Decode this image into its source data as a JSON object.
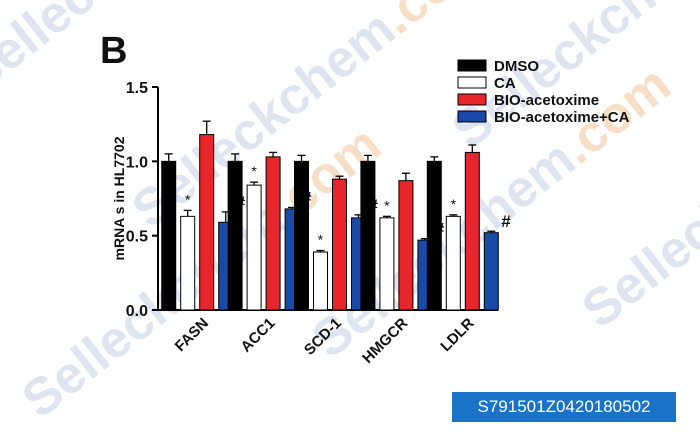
{
  "figure": {
    "panel_label": "B",
    "watermark_text": "Selleckchem",
    "watermark_suffix": ".com",
    "image_id": "S791501Z0420180502"
  },
  "colors": {
    "DMSO": "#000000",
    "CA": "#ffffff",
    "BIO-acetoxime": "#e8252a",
    "BIO-acetoxime+CA": "#1a4aa8",
    "watermark": "#c5cfe6",
    "watermark_orange": "#f2c49a",
    "badge": "#1a73c8"
  },
  "chart_data": {
    "type": "bar",
    "title": "",
    "xlabel": "",
    "ylabel": "mRNA s in HL7702",
    "ylim": [
      0,
      1.5
    ],
    "yticks": [
      "0.0",
      "0.5",
      "1.0",
      "1.5"
    ],
    "categories": [
      "FASN",
      "ACC1",
      "SCD-1",
      "HMGCR",
      "LDLR"
    ],
    "legend_position": "top-right",
    "grid": false,
    "series": [
      {
        "name": "DMSO",
        "values": [
          1.0,
          1.0,
          1.0,
          1.0,
          1.0
        ],
        "errors": [
          0.05,
          0.05,
          0.04,
          0.04,
          0.03
        ],
        "marks": [
          "",
          "",
          "",
          "",
          ""
        ]
      },
      {
        "name": "CA",
        "values": [
          0.63,
          0.84,
          0.39,
          0.62,
          0.63
        ],
        "errors": [
          0.04,
          0.02,
          0.01,
          0.01,
          0.01
        ],
        "marks": [
          "*",
          "*",
          "*",
          "*",
          "*"
        ]
      },
      {
        "name": "BIO-acetoxime",
        "values": [
          1.18,
          1.03,
          0.88,
          0.87,
          1.06
        ],
        "errors": [
          0.09,
          0.03,
          0.02,
          0.05,
          0.05
        ],
        "marks": [
          "",
          "",
          "",
          "",
          ""
        ]
      },
      {
        "name": "BIO-acetoxime+CA",
        "values": [
          0.59,
          0.68,
          0.62,
          0.47,
          0.52
        ],
        "errors": [
          0.07,
          0.01,
          0.02,
          0.01,
          0.01
        ],
        "marks": [
          "#",
          "#",
          "#",
          "#",
          "#"
        ]
      }
    ]
  }
}
